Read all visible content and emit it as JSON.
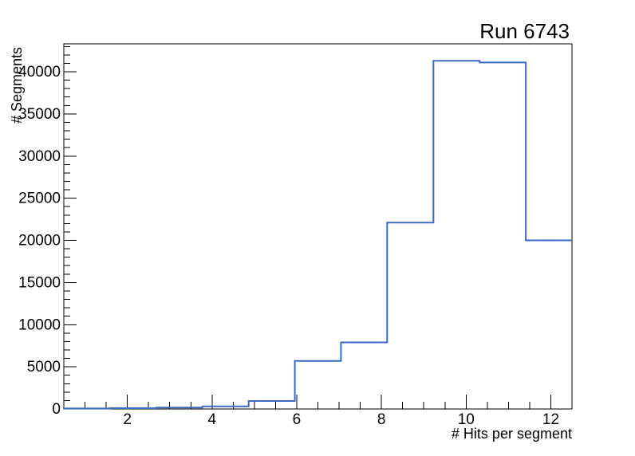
{
  "chart_data": {
    "type": "histogram-step",
    "title": "Run 6743",
    "xlabel": "# Hits per segment",
    "ylabel": "# Segments",
    "xlim": [
      0.5,
      12.5
    ],
    "ylim": [
      0,
      43310
    ],
    "bin_edges": [
      0.5,
      1.591,
      2.682,
      3.773,
      4.864,
      5.955,
      7.045,
      8.136,
      9.227,
      10.318,
      11.409,
      12.5
    ],
    "values": [
      60,
      90,
      160,
      300,
      950,
      5700,
      7900,
      22100,
      41300,
      41100,
      20000
    ],
    "x_major_ticks": [
      2,
      4,
      6,
      8,
      10,
      12
    ],
    "x_minor_step": 0.5,
    "y_major_ticks": [
      0,
      5000,
      10000,
      15000,
      20000,
      25000,
      30000,
      35000,
      40000
    ],
    "y_minor_step": 1000,
    "grid": false,
    "line_color": "#3a6bc0",
    "axis_color": "#000000",
    "text_color": "#000000",
    "background_color": "#ffffff"
  }
}
